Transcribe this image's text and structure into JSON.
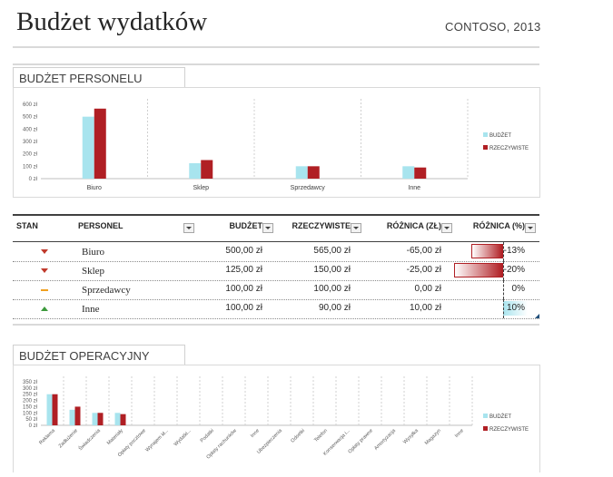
{
  "header": {
    "title": "Budżet wydatków",
    "company": "CONTOSO, 2013"
  },
  "colors": {
    "budget": "#a8e4ee",
    "actual": "#b01f24",
    "down_icon": "#c0392b",
    "neutral_icon": "#f0a020",
    "up_icon": "#3c9a3c",
    "bar_neg": "#b01f24",
    "bar_pos": "#a8e4ee"
  },
  "personnel_section": {
    "tab_label": "BUDŻET PERSONELU"
  },
  "operating_section": {
    "tab_label": "BUDŻET OPERACYJNY"
  },
  "chart_data": [
    {
      "type": "bar",
      "categories": [
        "Biuro",
        "Sklep",
        "Sprzedawcy",
        "Inne"
      ],
      "series": [
        {
          "name": "BUDŻET",
          "values": [
            500,
            125,
            100,
            100
          ]
        },
        {
          "name": "RZECZYWISTE",
          "values": [
            565,
            150,
            100,
            90
          ]
        }
      ],
      "yticks": [
        "0 zł",
        "100 zł",
        "200 zł",
        "300 zł",
        "400 zł",
        "500 zł",
        "600 zł"
      ],
      "ylim": [
        0,
        600
      ],
      "legend": "right"
    },
    {
      "type": "bar",
      "categories": [
        "Reklama",
        "Zadłużenie",
        "Świadczenia",
        "Materiały",
        "Opłaty pocztowe",
        "Wynajem kł...",
        "Wydatki...",
        "Podatki",
        "Opłaty rachunków",
        "Inne",
        "Ubezpieczenia",
        "Odsetki",
        "Telefon",
        "Konserwacja i...",
        "Opłaty prawne",
        "Amortyzacja",
        "Wysyłka",
        "Magazyn",
        "Inne"
      ],
      "series": [
        {
          "name": "BUDŻET",
          "values": [
            250,
            125,
            100,
            100,
            0,
            0,
            0,
            0,
            0,
            0,
            0,
            0,
            0,
            0,
            0,
            0,
            0,
            0,
            0
          ]
        },
        {
          "name": "RZECZYWISTE",
          "values": [
            250,
            150,
            100,
            90,
            0,
            0,
            0,
            0,
            0,
            0,
            0,
            0,
            0,
            0,
            0,
            0,
            0,
            0,
            0
          ]
        }
      ],
      "yticks": [
        "0 zł",
        "50 zł",
        "100 zł",
        "150 zł",
        "200 zł",
        "250 zł",
        "300 zł",
        "350 zł"
      ],
      "ylim": [
        0,
        350
      ],
      "legend": "right"
    }
  ],
  "personnel_table": {
    "headers": [
      "STAN",
      "PERSONEL",
      "BUDŻET",
      "RZECZYWISTE",
      "RÓŻNICA (ZŁ)",
      "RÓŻNICA (%)"
    ],
    "rows": [
      {
        "status": "down",
        "name": "Biuro",
        "budget": "500,00 zł",
        "actual": "565,00 zł",
        "diff": "-65,00 zł",
        "pct": "-13%",
        "pct_value": -13
      },
      {
        "status": "down",
        "name": "Sklep",
        "budget": "125,00 zł",
        "actual": "150,00 zł",
        "diff": "-25,00 zł",
        "pct": "-20%",
        "pct_value": -20
      },
      {
        "status": "neutral",
        "name": "Sprzedawcy",
        "budget": "100,00 zł",
        "actual": "100,00 zł",
        "diff": "0,00 zł",
        "pct": "0%",
        "pct_value": 0
      },
      {
        "status": "up",
        "name": "Inne",
        "budget": "100,00 zł",
        "actual": "90,00 zł",
        "diff": "10,00 zł",
        "pct": "10%",
        "pct_value": 10
      }
    ]
  }
}
